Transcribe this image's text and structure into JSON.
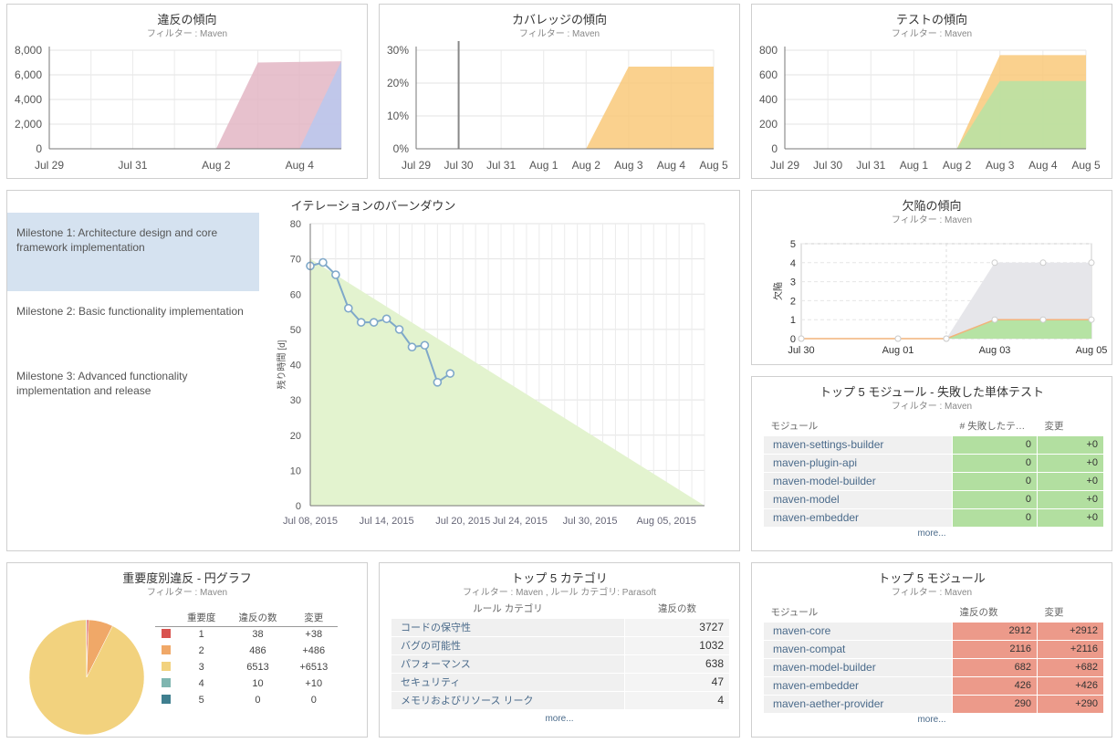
{
  "violations_trend": {
    "title": "違反の傾向",
    "subtitle": "フィルター : Maven"
  },
  "coverage_trend": {
    "title": "カバレッジの傾向",
    "subtitle": "フィルター : Maven"
  },
  "test_trend": {
    "title": "テストの傾向",
    "subtitle": "フィルター : Maven"
  },
  "burndown": {
    "title": "イテレーションのバーンダウン",
    "milestones": [
      {
        "label": "Milestone 1: Architecture design and core framework implementation"
      },
      {
        "label": "Milestone 2: Basic functionality implementation"
      },
      {
        "label": "Milestone 3: Advanced functionality implementation and release"
      }
    ]
  },
  "defect_trend": {
    "title": "欠陥の傾向",
    "subtitle": "フィルター : Maven"
  },
  "failed_tests": {
    "title": "トップ 5 モジュール - 失敗した単体テスト",
    "subtitle": "フィルター : Maven",
    "col_module": "モジュール",
    "col_count": "# 失敗したテ…",
    "col_change": "変更",
    "rows": [
      {
        "module": "maven-settings-builder",
        "count": "0",
        "change": "+0"
      },
      {
        "module": "maven-plugin-api",
        "count": "0",
        "change": "+0"
      },
      {
        "module": "maven-model-builder",
        "count": "0",
        "change": "+0"
      },
      {
        "module": "maven-model",
        "count": "0",
        "change": "+0"
      },
      {
        "module": "maven-embedder",
        "count": "0",
        "change": "+0"
      }
    ],
    "more": "more..."
  },
  "severity_pie": {
    "title": "重要度別違反 - 円グラフ",
    "subtitle": "フィルター : Maven",
    "col_sev": "重要度",
    "col_count": "違反の数",
    "col_change": "変更",
    "rows": [
      {
        "sev": "1",
        "count": "38",
        "change": "+38",
        "color": "#d9534f"
      },
      {
        "sev": "2",
        "count": "486",
        "change": "+486",
        "color": "#f0a868"
      },
      {
        "sev": "3",
        "count": "6513",
        "change": "+6513",
        "color": "#f2d27e"
      },
      {
        "sev": "4",
        "count": "10",
        "change": "+10",
        "color": "#7fb6b0"
      },
      {
        "sev": "5",
        "count": "0",
        "change": "0",
        "color": "#3f7f8f"
      }
    ]
  },
  "top_categories": {
    "title": "トップ 5 カテゴリ",
    "subtitle": "フィルター : Maven , ルール カテゴリ: Parasoft",
    "col_cat": "ルール カテゴリ",
    "col_count": "違反の数",
    "rows": [
      {
        "cat": "コードの保守性",
        "count": "3727"
      },
      {
        "cat": "バグの可能性",
        "count": "1032"
      },
      {
        "cat": "パフォーマンス",
        "count": "638"
      },
      {
        "cat": "セキュリティ",
        "count": "47"
      },
      {
        "cat": "メモリおよびリソース リーク",
        "count": "4"
      }
    ],
    "more": "more..."
  },
  "top_modules": {
    "title": "トップ 5 モジュール",
    "subtitle": "フィルター : Maven",
    "col_module": "モジュール",
    "col_count": "違反の数",
    "col_change": "変更",
    "rows": [
      {
        "module": "maven-core",
        "count": "2912",
        "change": "+2912"
      },
      {
        "module": "maven-compat",
        "count": "2116",
        "change": "+2116"
      },
      {
        "module": "maven-model-builder",
        "count": "682",
        "change": "+682"
      },
      {
        "module": "maven-embedder",
        "count": "426",
        "change": "+426"
      },
      {
        "module": "maven-aether-provider",
        "count": "290",
        "change": "+290"
      }
    ],
    "more": "more..."
  },
  "chart_data": [
    {
      "id": "violations",
      "type": "area",
      "title": "",
      "x_ticks": [
        "Jul 29",
        "Jul 31",
        "Aug 2",
        "Aug 4"
      ],
      "y_ticks": [
        "0",
        "2,000",
        "4,000",
        "6,000",
        "8,000"
      ],
      "ylim": [
        0,
        8000
      ],
      "series": [
        {
          "color": "#e3b6c4",
          "points": [
            [
              "Aug 2",
              0
            ],
            [
              "Aug 3",
              7000
            ],
            [
              "Aug 5",
              7100
            ]
          ]
        },
        {
          "color": "#b8c8ee",
          "points": [
            [
              "Aug 4",
              0
            ],
            [
              "Aug 5",
              7100
            ]
          ]
        }
      ]
    },
    {
      "id": "coverage",
      "type": "area",
      "title": "",
      "x_ticks": [
        "Jul 29",
        "Jul 30",
        "Jul 31",
        "Aug 1",
        "Aug 2",
        "Aug 3",
        "Aug 4",
        "Aug 5"
      ],
      "y_ticks": [
        "0%",
        "10%",
        "20%",
        "30%"
      ],
      "ylim": [
        0,
        30
      ],
      "series": [
        {
          "color": "#f9c97a",
          "points": [
            [
              "Aug 2",
              0
            ],
            [
              "Aug 3",
              25
            ],
            [
              "Aug 5",
              25
            ]
          ]
        }
      ]
    },
    {
      "id": "tests",
      "type": "area",
      "title": "",
      "x_ticks": [
        "Jul 29",
        "Jul 30",
        "Jul 31",
        "Aug 1",
        "Aug 2",
        "Aug 3",
        "Aug 4",
        "Aug 5"
      ],
      "y_ticks": [
        "0",
        "200",
        "400",
        "600",
        "800"
      ],
      "ylim": [
        0,
        800
      ],
      "series": [
        {
          "color": "#f9c97a",
          "points": [
            [
              "Aug 2",
              0
            ],
            [
              "Aug 3",
              760
            ],
            [
              "Aug 5",
              760
            ]
          ]
        },
        {
          "color": "#b6e3a4",
          "points": [
            [
              "Aug 2",
              0
            ],
            [
              "Aug 3",
              550
            ],
            [
              "Aug 5",
              550
            ]
          ]
        }
      ]
    },
    {
      "id": "burndown",
      "type": "line",
      "title": "",
      "ylabel": "残り時間 [d]",
      "x_ticks": [
        "Jul 08, 2015",
        "Jul 14, 2015",
        "Jul 20, 2015",
        "Jul 24, 2015",
        "Jul 30, 2015",
        "Aug 05, 2015"
      ],
      "y_ticks": [
        "0",
        "10",
        "20",
        "30",
        "40",
        "50",
        "60",
        "70",
        "80"
      ],
      "ylim": [
        0,
        80
      ],
      "ideal": [
        [
          "Jul 08, 2015",
          70
        ],
        [
          "Aug 08, 2015",
          0
        ]
      ],
      "actual": [
        68,
        69,
        65.5,
        56,
        52,
        52,
        53,
        50,
        45,
        45.5,
        35,
        37.5
      ]
    },
    {
      "id": "defects",
      "type": "area",
      "title": "",
      "ylabel": "欠陥",
      "x_ticks": [
        "Jul 30",
        "Aug 01",
        "Aug 03",
        "Aug 05"
      ],
      "y_ticks": [
        "0",
        "1",
        "2",
        "3",
        "4",
        "5"
      ],
      "ylim": [
        0,
        5
      ],
      "series": [
        {
          "color": "#e6e6ea",
          "points": [
            [
              "Jul 30",
              0
            ],
            [
              "Aug 01",
              0
            ],
            [
              "Aug 02",
              0
            ],
            [
              "Aug 03",
              4
            ],
            [
              "Aug 04",
              4
            ],
            [
              "Aug 05",
              4
            ]
          ]
        },
        {
          "color": "#b6e3a4",
          "points": [
            [
              "Jul 30",
              0
            ],
            [
              "Aug 01",
              0
            ],
            [
              "Aug 02",
              0
            ],
            [
              "Aug 03",
              1
            ],
            [
              "Aug 04",
              1
            ],
            [
              "Aug 05",
              1
            ]
          ]
        }
      ]
    },
    {
      "id": "severity",
      "type": "pie",
      "title": "",
      "slices": [
        {
          "label": "1",
          "value": 38,
          "color": "#d9534f"
        },
        {
          "label": "2",
          "value": 486,
          "color": "#f0a868"
        },
        {
          "label": "3",
          "value": 6513,
          "color": "#f2d27e"
        },
        {
          "label": "4",
          "value": 10,
          "color": "#7fb6b0"
        },
        {
          "label": "5",
          "value": 0,
          "color": "#3f7f8f"
        }
      ]
    }
  ]
}
